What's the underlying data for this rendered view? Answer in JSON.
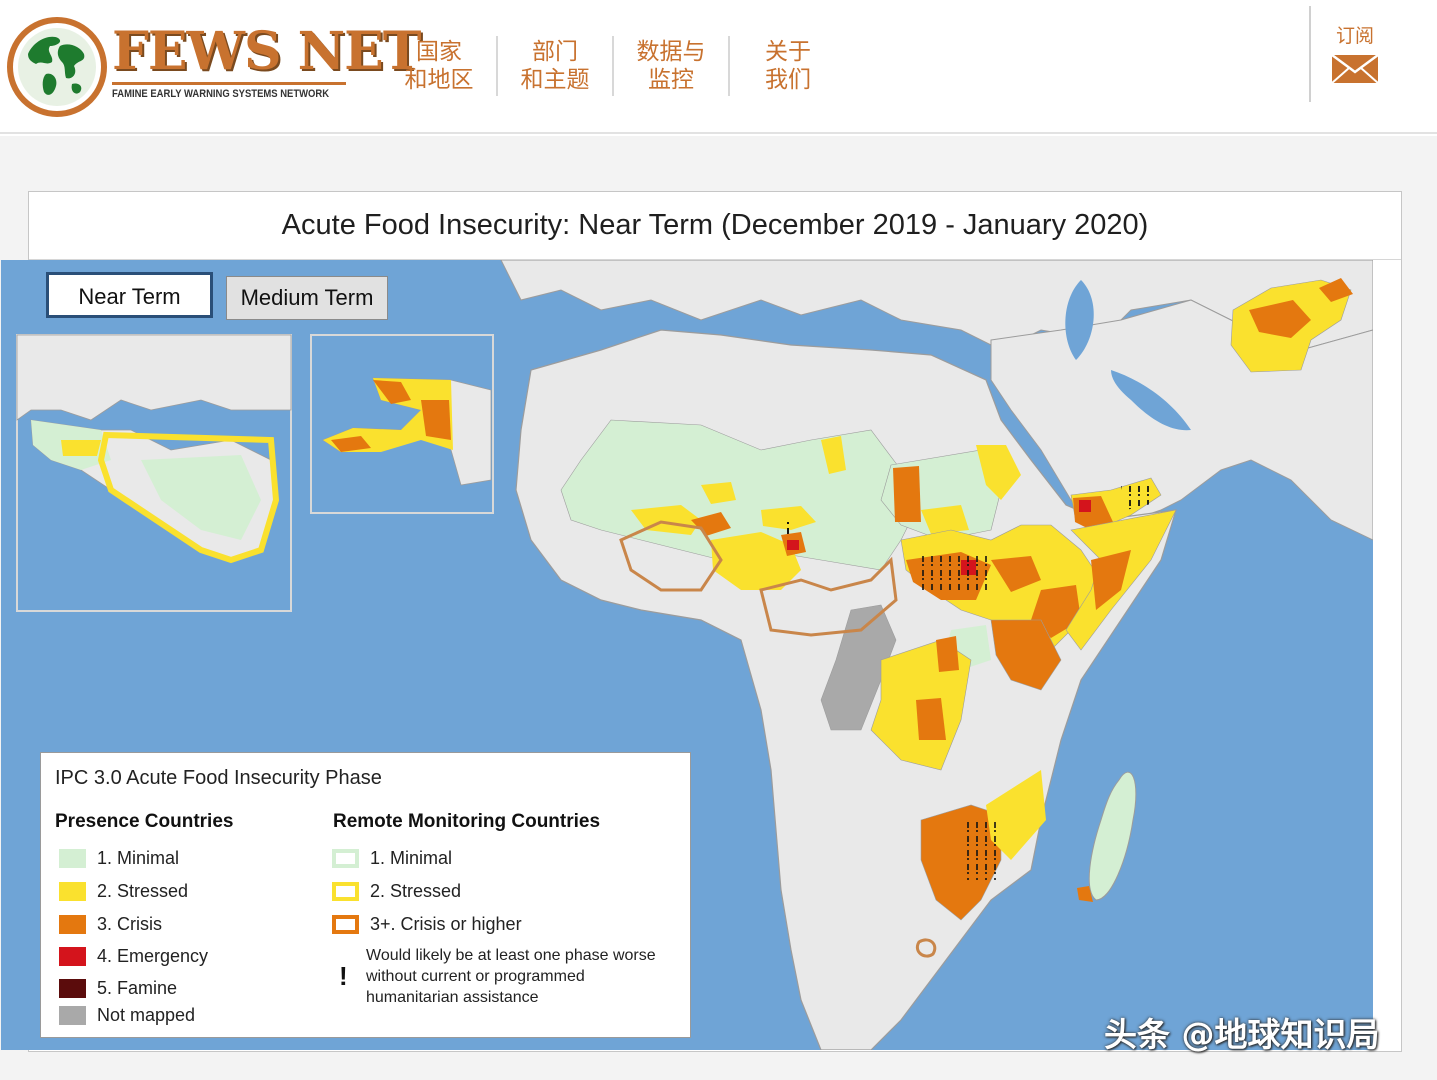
{
  "header": {
    "logo_word": "FEWS NET",
    "logo_tagline": "FAMINE EARLY WARNING SYSTEMS NETWORK",
    "nav": [
      {
        "label": "国家\n和地区"
      },
      {
        "label": "部门\n和主题"
      },
      {
        "label": "数据与\n监控"
      },
      {
        "label": "关于\n我们"
      }
    ],
    "subscribe_label": "订阅",
    "accent_color": "#c8722f"
  },
  "map": {
    "title": "Acute Food Insecurity: Near Term (December 2019 - January 2020)",
    "tabs": {
      "near": "Near Term",
      "medium": "Medium Term"
    },
    "colors": {
      "ocean": "#6fa4d6",
      "land": "#e9e9e9",
      "minimal": "#d4efd3",
      "stressed": "#fae12e",
      "crisis": "#e4780f",
      "emergency": "#d4141c",
      "famine": "#5b0c0c",
      "not_mapped": "#a9a9a9",
      "remote_outline": "#c9864a"
    }
  },
  "legend": {
    "title": "IPC 3.0 Acute Food Insecurity Phase",
    "presence_title": "Presence Countries",
    "remote_title": "Remote Monitoring Countries",
    "presence": [
      {
        "label": "1. Minimal",
        "color": "#d4efd3"
      },
      {
        "label": "2. Stressed",
        "color": "#fae12e"
      },
      {
        "label": "3. Crisis",
        "color": "#e4780f"
      },
      {
        "label": "4. Emergency",
        "color": "#d4141c"
      },
      {
        "label": "5. Famine",
        "color": "#5b0c0c"
      },
      {
        "label": "Not mapped",
        "color": "#a9a9a9"
      }
    ],
    "remote": [
      {
        "label": "1. Minimal",
        "border": "#d4efd3"
      },
      {
        "label": "2. Stressed",
        "border": "#fae12e"
      },
      {
        "label": "3+. Crisis or higher",
        "border": "#e4780f"
      }
    ],
    "note": "Would likely be at least one phase worse without current or programmed humanitarian assistance",
    "note_symbol": "!"
  },
  "watermark": "头条 @地球知识局"
}
